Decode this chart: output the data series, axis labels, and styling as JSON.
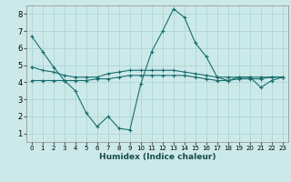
{
  "xlabel": "Humidex (Indice chaleur)",
  "ylabel": "",
  "background_color": "#cce9e9",
  "grid_color": "#aad0d0",
  "line_color": "#1a6e6e",
  "xlim": [
    -0.5,
    23.5
  ],
  "ylim": [
    0.5,
    8.5
  ],
  "xticks": [
    0,
    1,
    2,
    3,
    4,
    5,
    6,
    7,
    8,
    9,
    10,
    11,
    12,
    13,
    14,
    15,
    16,
    17,
    18,
    19,
    20,
    21,
    22,
    23
  ],
  "yticks": [
    1,
    2,
    3,
    4,
    5,
    6,
    7,
    8
  ],
  "series": [
    {
      "x": [
        0,
        1,
        2,
        3,
        4,
        5,
        6,
        7,
        8,
        9,
        10,
        11,
        12,
        13,
        14,
        15,
        16,
        17,
        18,
        19,
        20,
        21,
        22,
        23
      ],
      "y": [
        6.7,
        5.8,
        4.9,
        4.1,
        3.5,
        2.2,
        1.4,
        2.0,
        1.3,
        1.2,
        3.9,
        5.8,
        7.0,
        8.3,
        7.8,
        6.3,
        5.5,
        4.3,
        4.1,
        4.3,
        4.3,
        3.7,
        4.1,
        4.3
      ]
    },
    {
      "x": [
        0,
        1,
        2,
        3,
        4,
        5,
        6,
        7,
        8,
        9,
        10,
        11,
        12,
        13,
        14,
        15,
        16,
        17,
        18,
        19,
        20,
        21,
        22,
        23
      ],
      "y": [
        4.9,
        4.7,
        4.6,
        4.4,
        4.3,
        4.3,
        4.3,
        4.5,
        4.6,
        4.7,
        4.7,
        4.7,
        4.7,
        4.7,
        4.6,
        4.5,
        4.4,
        4.3,
        4.3,
        4.3,
        4.3,
        4.3,
        4.3,
        4.3
      ]
    },
    {
      "x": [
        0,
        1,
        2,
        3,
        4,
        5,
        6,
        7,
        8,
        9,
        10,
        11,
        12,
        13,
        14,
        15,
        16,
        17,
        18,
        19,
        20,
        21,
        22,
        23
      ],
      "y": [
        4.1,
        4.1,
        4.1,
        4.1,
        4.1,
        4.1,
        4.2,
        4.2,
        4.3,
        4.4,
        4.4,
        4.4,
        4.4,
        4.4,
        4.4,
        4.3,
        4.2,
        4.1,
        4.1,
        4.2,
        4.2,
        4.2,
        4.3,
        4.3
      ]
    }
  ]
}
